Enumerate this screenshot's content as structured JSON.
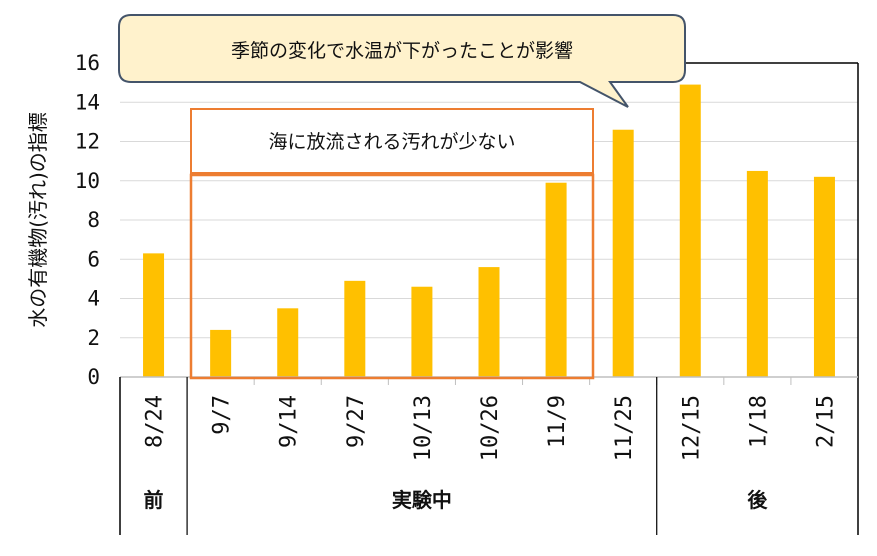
{
  "chart_data": {
    "type": "bar",
    "ylabel": "水の有機物(汚れ)の指標",
    "ylim": [
      0,
      16
    ],
    "yticks": [
      0,
      2,
      4,
      6,
      8,
      10,
      12,
      14,
      16
    ],
    "grid": true,
    "categories": [
      "8/24",
      "9/7",
      "9/14",
      "9/27",
      "10/13",
      "10/26",
      "11/9",
      "11/25",
      "12/15",
      "1/18",
      "2/15"
    ],
    "values": [
      6.3,
      2.4,
      3.5,
      4.9,
      4.6,
      5.6,
      9.9,
      12.6,
      14.9,
      10.5,
      10.2
    ],
    "bar_color": "#FFC000",
    "groups": [
      {
        "label": "前",
        "start": 0,
        "end": 0
      },
      {
        "label": "実験中",
        "start": 1,
        "end": 7
      },
      {
        "label": "後",
        "start": 8,
        "end": 10
      }
    ],
    "annotations": {
      "callout": "季節の変化で水温が下がったことが影響",
      "box_label": "海に放流される汚れが少ない",
      "callout_fill": "#FFF2CC",
      "callout_border": "#44546A",
      "box_border": "#ED7D31"
    }
  }
}
